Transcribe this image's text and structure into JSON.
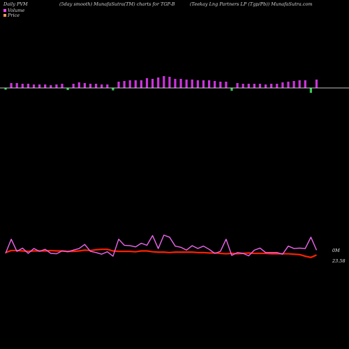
{
  "header": {
    "left": "Daily PVM",
    "center": "(5day smooth) MunafaSutra(TM) charts for TGP-B",
    "right": "(Teekay Lng Partners LP (Tgp/Pb)) MunafaSutra.com"
  },
  "legend": [
    {
      "label": "Volume",
      "color": "#ff44ff"
    },
    {
      "label": "Price",
      "color": "#ff9955"
    }
  ],
  "right_labels": {
    "volume": "0M",
    "price": "23.58"
  },
  "colors": {
    "background": "#000000",
    "up_bar": "#cc33dd",
    "down_bar": "#33cc55",
    "baseline": "#ffffff",
    "volume_line": "#ee66ee",
    "price_line": "#ff2200"
  },
  "chart_data": {
    "type": "bar+line",
    "volume_bars": {
      "heights": [
        5,
        7,
        7,
        6,
        6,
        5,
        5,
        5,
        4,
        5,
        6,
        6,
        6,
        8,
        7,
        6,
        6,
        5,
        5,
        7,
        9,
        10,
        11,
        11,
        11,
        14,
        13,
        15,
        17,
        16,
        13,
        13,
        12,
        12,
        11,
        11,
        11,
        10,
        9,
        9,
        8,
        7,
        6,
        6,
        6,
        6,
        5,
        6,
        6,
        8,
        9,
        10,
        11,
        11,
        14,
        12
      ],
      "direction": [
        "down",
        "up",
        "up",
        "up",
        "up",
        "up",
        "up",
        "up",
        "up",
        "up",
        "up",
        "down",
        "up",
        "up",
        "up",
        "up",
        "up",
        "up",
        "up",
        "down",
        "up",
        "up",
        "up",
        "up",
        "up",
        "up",
        "up",
        "up",
        "up",
        "up",
        "up",
        "up",
        "up",
        "up",
        "up",
        "up",
        "up",
        "up",
        "up",
        "up",
        "down",
        "up",
        "up",
        "up",
        "up",
        "up",
        "up",
        "up",
        "up",
        "up",
        "up",
        "up",
        "up",
        "up",
        "down",
        "up"
      ],
      "scale_max": 20
    },
    "volume_line": [
      50,
      85,
      55,
      63,
      50,
      62,
      55,
      60,
      50,
      49,
      56,
      54,
      58,
      62,
      72,
      55,
      52,
      48,
      54,
      43,
      85,
      70,
      69,
      66,
      75,
      70,
      94,
      62,
      95,
      90,
      68,
      65,
      58,
      69,
      62,
      68,
      60,
      50,
      55,
      85,
      45,
      52,
      50,
      44,
      58,
      63,
      52,
      52,
      52,
      48,
      68,
      62,
      63,
      62,
      90,
      58
    ],
    "price_line": [
      52,
      57,
      57,
      56,
      55,
      56,
      56,
      56,
      57,
      56,
      56,
      55,
      55,
      56,
      58,
      57,
      59,
      60,
      60,
      56,
      55,
      55,
      55,
      54,
      56,
      56,
      54,
      53,
      53,
      52,
      53,
      53,
      53,
      53,
      52,
      52,
      51,
      51,
      50,
      49,
      50,
      49,
      50,
      51,
      50,
      50,
      50,
      49,
      49,
      49,
      49,
      48,
      47,
      43,
      40,
      46
    ],
    "line_scale": {
      "min": 0,
      "max": 100
    }
  }
}
